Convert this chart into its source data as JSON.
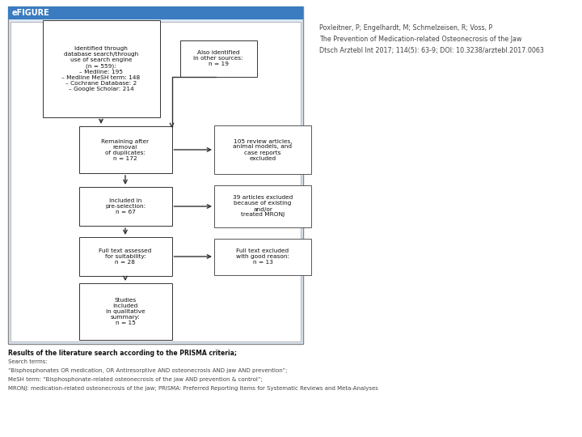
{
  "title": "eFIGURE",
  "title_bg": "#3a7cbf",
  "citation_lines": [
    "Poxleitner, P; Engelhardt, M; Schmelzeisen, R; Voss, P",
    "The Prevention of Medication-related Osteonecrosis of the Jaw",
    "Dtsch Arztebl Int 2017; 114(5): 63-9; DOI: 10.3238/arztebl.2017.0063"
  ],
  "footer_bold": "Results of the literature search according to the PRISMA criteria;",
  "footer_lines": [
    "Search terms:",
    "“Bisphosphonates OR medication, OR Antiresorptive AND osteonecrosis AND jaw AND prevention”;",
    "MeSH term: “Bisphosphonate-related osteonecrosis of the jaw AND prevention & control”;",
    "MRONJ: medication-related osteonecrosis of the jaw; PRISMA: Preferred Reporting Items for Systematic Reviews and Meta-Analyses"
  ]
}
